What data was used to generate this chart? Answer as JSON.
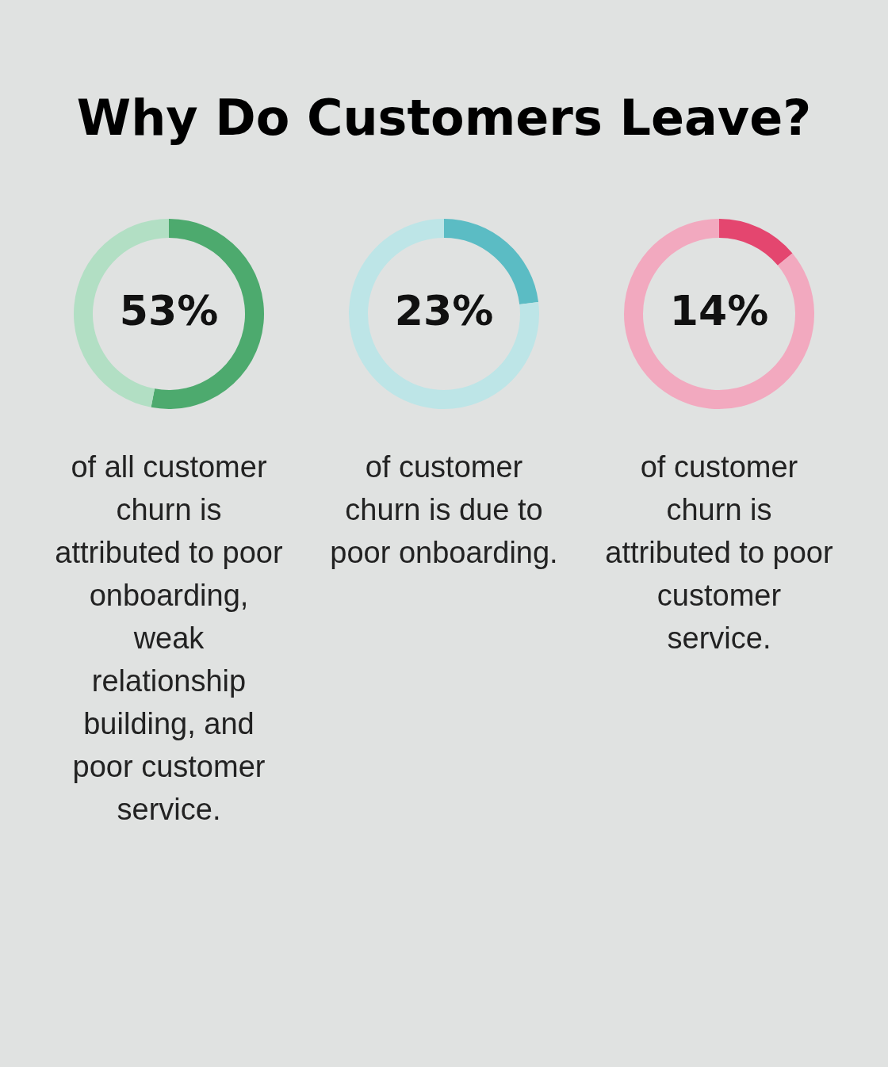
{
  "chart_data": [
    {
      "type": "donut",
      "title": "Why Do Customers Leave?",
      "categories": [
        null,
        null
      ],
      "values": [
        53,
        47
      ],
      "colors": [
        "#4daa6e",
        "#b2dfc4"
      ],
      "value_labels": [
        "53%",
        null
      ],
      "annotations": [
        "of all customer churn is attributed to poor onboarding, weak relationship building, and poor customer service."
      ]
    },
    {
      "type": "donut",
      "categories": [
        null,
        null
      ],
      "values": [
        23,
        77
      ],
      "colors": [
        "#5bbcc4",
        "#bde5e7"
      ],
      "value_labels": [
        "23%",
        null
      ],
      "annotations": [
        "of customer churn is due to poor onboarding."
      ]
    },
    {
      "type": "donut",
      "categories": [
        null,
        null
      ],
      "values": [
        14,
        86
      ],
      "colors": [
        "#e4466f",
        "#f2a9bf"
      ],
      "value_labels": [
        "14%",
        null
      ],
      "annotations": [
        "of customer churn is attributed to poor customer service."
      ]
    }
  ]
}
